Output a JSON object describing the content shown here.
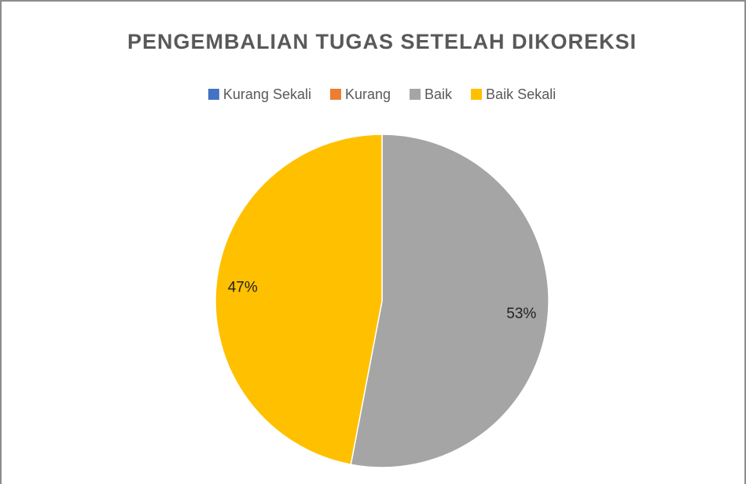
{
  "chart_data": {
    "type": "pie",
    "title": "PENGEMBALIAN TUGAS SETELAH DIKOREKSI",
    "categories": [
      "Kurang Sekali",
      "Kurang",
      "Baik",
      "Baik Sekali"
    ],
    "values": [
      0,
      0,
      53,
      47
    ],
    "value_labels": [
      "0%",
      "0%",
      "53%",
      "47%"
    ],
    "colors": [
      "#4472c4",
      "#ed7d31",
      "#a5a5a5",
      "#ffc000"
    ],
    "legend": "top"
  }
}
